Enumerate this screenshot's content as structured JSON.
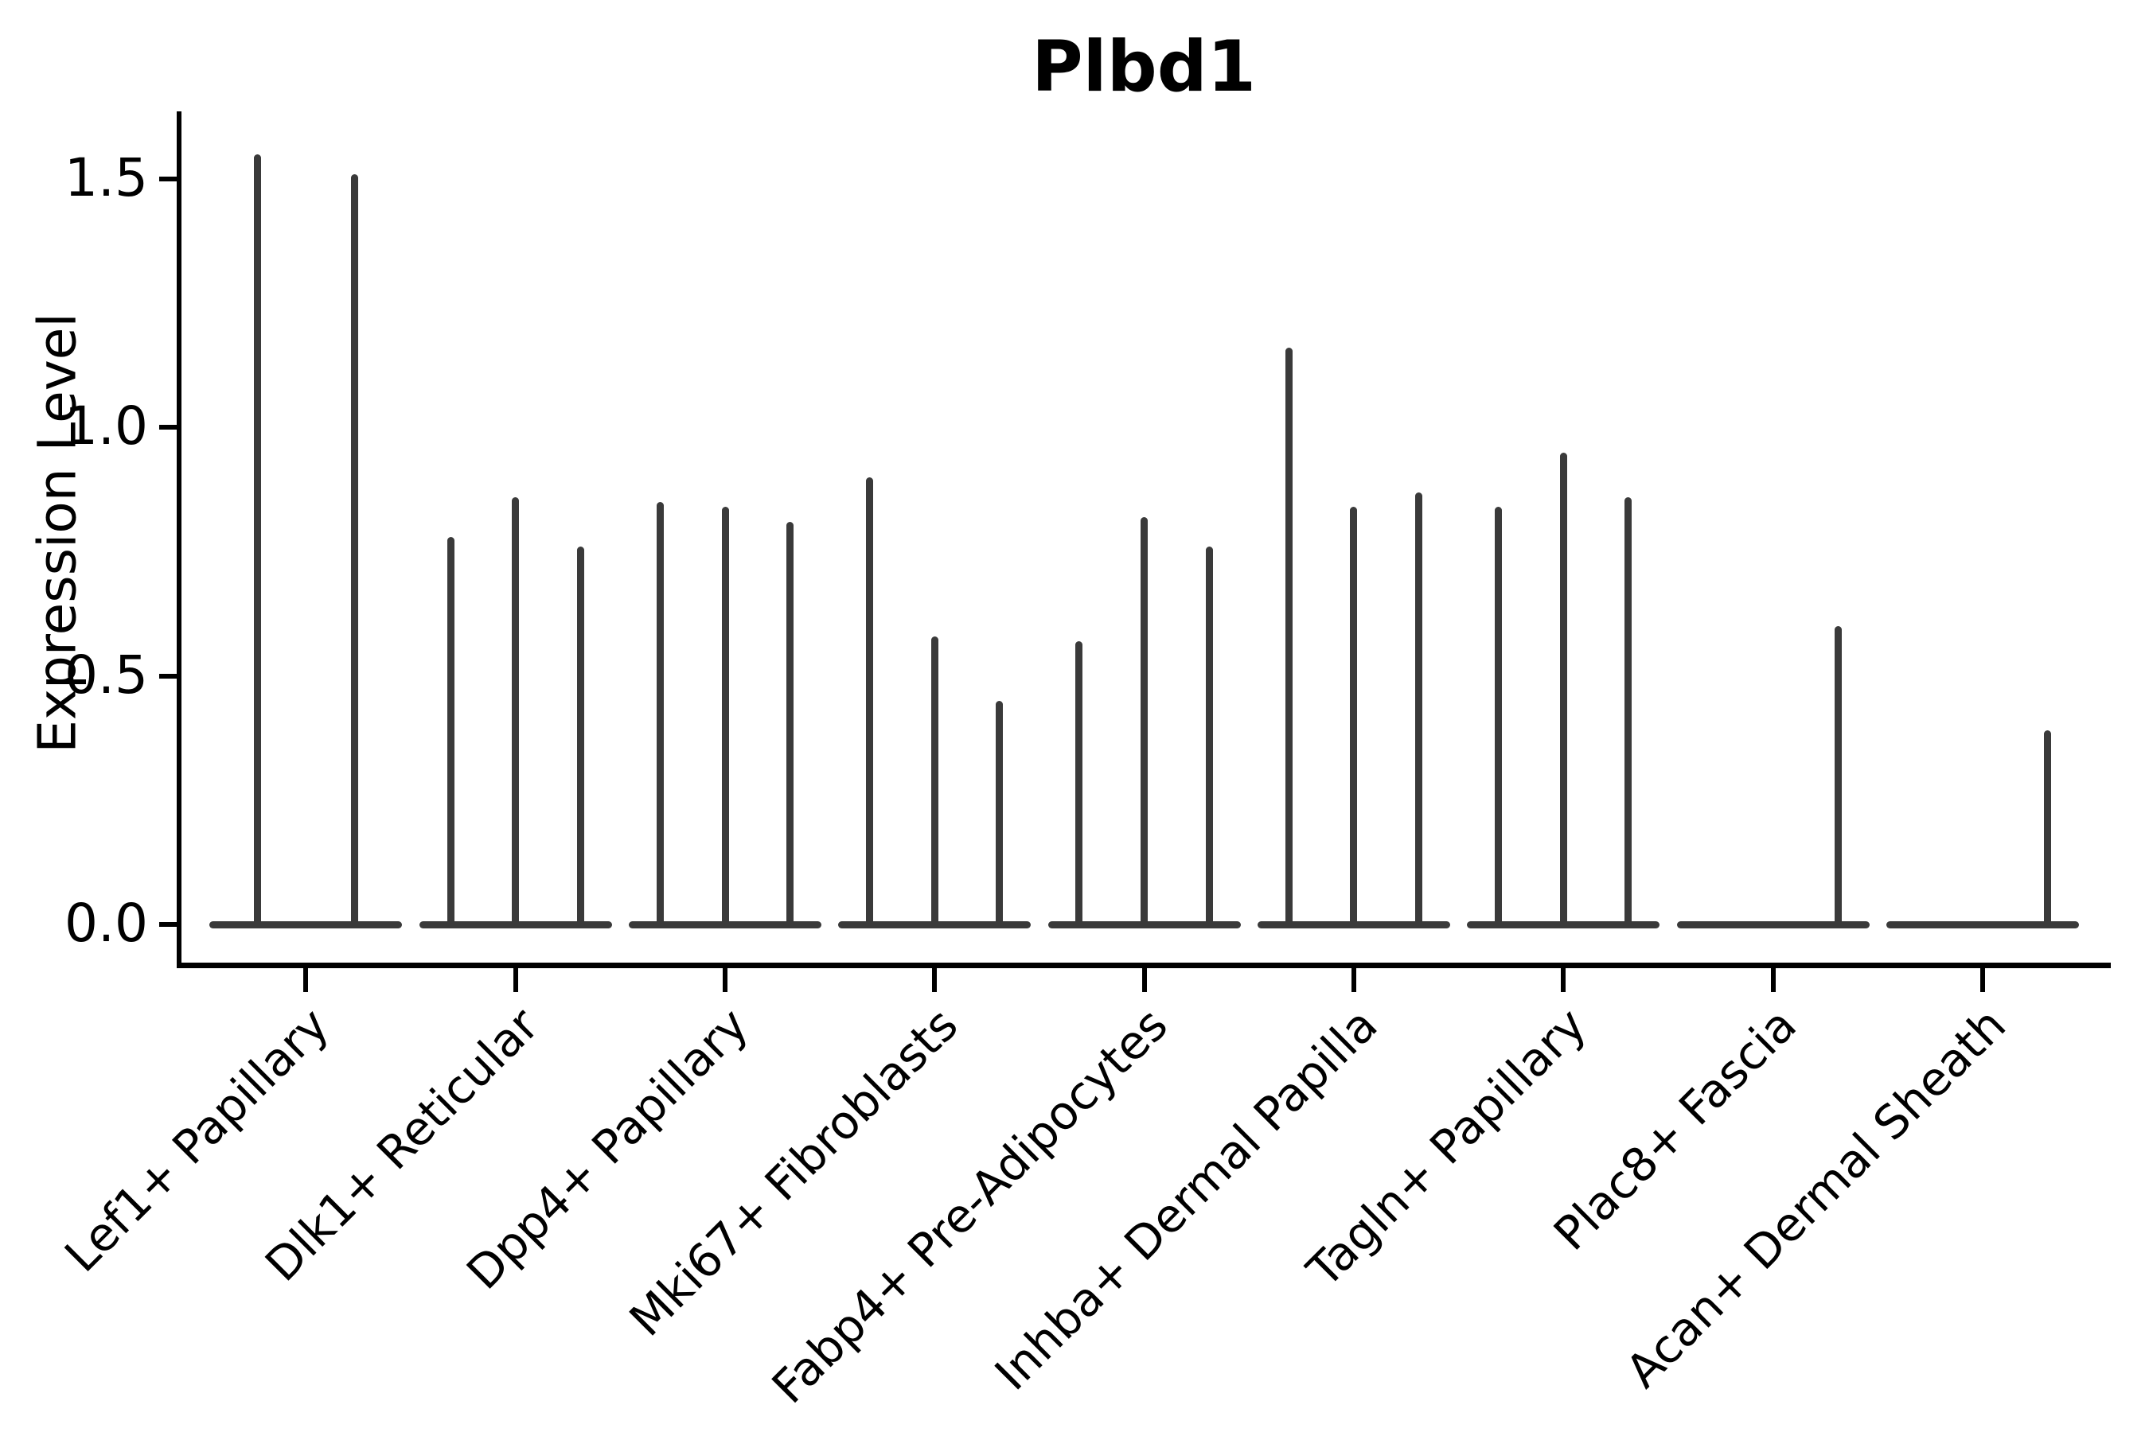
{
  "figure": {
    "title": "Plbd1"
  },
  "axes": {
    "ylabel": "Expression Level",
    "ytick_labels": [
      "0.0",
      "0.5",
      "1.0",
      "1.5"
    ]
  },
  "colors": {
    "violin": "#3a3a3a",
    "axis": "#000000",
    "background": "#ffffff"
  },
  "chart_data": {
    "type": "violin",
    "title": "Plbd1",
    "xlabel": "",
    "ylabel": "Expression Level",
    "ylim": [
      0,
      1.63
    ],
    "yticks": [
      0.0,
      0.5,
      1.0,
      1.5
    ],
    "grid": false,
    "legend_position": "none",
    "categories": [
      "Lef1+ Papillary",
      "Dlk1+ Reticular",
      "Dpp4+ Papillary",
      "Mki67+ Fibroblasts",
      "Fabp4+ Pre-Adipocytes",
      "Inhba+ Dermal Papilla",
      "Tagln+ Papillary",
      "Plac8+ Fascia",
      "Acan+ Dermal Sheath"
    ],
    "groups": [
      {
        "category": "Lef1+ Papillary",
        "n_violins": 2,
        "violin_peak_values": [
          1.55,
          1.51
        ]
      },
      {
        "category": "Dlk1+ Reticular",
        "n_violins": 3,
        "violin_peak_values": [
          0.78,
          0.86,
          0.76
        ]
      },
      {
        "category": "Dpp4+ Papillary",
        "n_violins": 3,
        "violin_peak_values": [
          0.85,
          0.84,
          0.81
        ]
      },
      {
        "category": "Mki67+ Fibroblasts",
        "n_violins": 3,
        "violin_peak_values": [
          0.9,
          0.58,
          0.45
        ]
      },
      {
        "category": "Fabp4+ Pre-Adipocytes",
        "n_violins": 3,
        "violin_peak_values": [
          0.57,
          0.82,
          0.76
        ]
      },
      {
        "category": "Inhba+ Dermal Papilla",
        "n_violins": 3,
        "violin_peak_values": [
          1.16,
          0.84,
          0.87
        ]
      },
      {
        "category": "Tagln+ Papillary",
        "n_violins": 3,
        "violin_peak_values": [
          0.84,
          0.95,
          0.86
        ]
      },
      {
        "category": "Plac8+ Fascia",
        "n_violins": 3,
        "violin_peak_values": [
          0.0,
          0.0,
          0.6
        ]
      },
      {
        "category": "Acan+ Dermal Sheath",
        "n_violins": 3,
        "violin_peak_values": [
          0.0,
          0.0,
          0.39
        ]
      }
    ],
    "note": "Each violin is collapsed at expression 0 (flat horizontal strip) with a thin vertical spike reaching the listed maximum expression level."
  }
}
